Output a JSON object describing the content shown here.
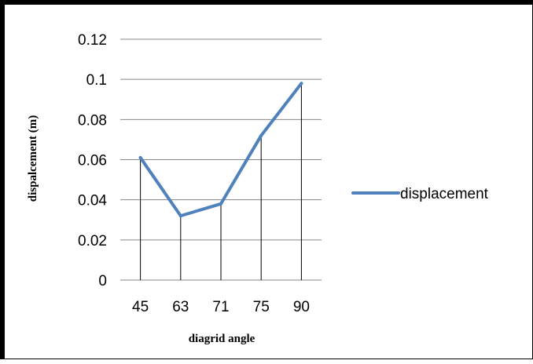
{
  "chart_data": {
    "type": "line",
    "categories": [
      "45",
      "63",
      "71",
      "75",
      "90"
    ],
    "series": [
      {
        "name": "displacement",
        "values": [
          0.061,
          0.032,
          0.038,
          0.072,
          0.098
        ],
        "color": "#4F81BD"
      }
    ],
    "xlabel": "diagrid angle",
    "ylabel": "dispalcement (m)",
    "ylim": [
      0,
      0.12
    ],
    "yticks": [
      "0",
      "0.02",
      "0.04",
      "0.06",
      "0.08",
      "0.1",
      "0.12"
    ],
    "grid": "horizontal",
    "drop_lines": true,
    "legend": "right"
  }
}
